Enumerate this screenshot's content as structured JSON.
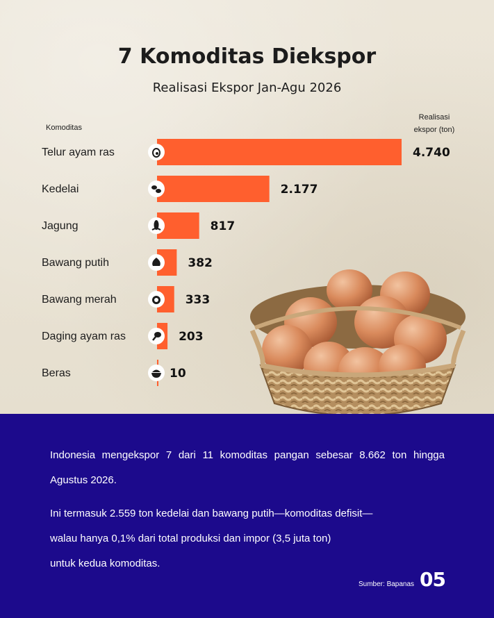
{
  "chart_data": {
    "type": "bar",
    "orientation": "horizontal",
    "title": "7 Komoditas Diekspor",
    "subtitle": "Realisasi Ekspor Jan-Agu 2026",
    "category_header": "Komoditas",
    "value_header_line1": "Realisasi",
    "value_header_line2": "ekspor (ton)",
    "categories": [
      "Telur ayam ras",
      "Kedelai",
      "Jagung",
      "Bawang putih",
      "Bawang merah",
      "Daging ayam ras",
      "Beras"
    ],
    "values": [
      4740,
      2177,
      817,
      382,
      333,
      203,
      10
    ],
    "value_labels": [
      "4.740",
      "2.177",
      "817",
      "382",
      "333",
      "203",
      "10"
    ],
    "icons": [
      "egg-icon",
      "soybean-icon",
      "corn-icon",
      "garlic-icon",
      "shallot-icon",
      "chicken-leg-icon",
      "rice-bowl-icon"
    ],
    "bar_color": "#ff5f2e"
  },
  "text": {
    "paragraph1": "Indonesia mengekspor 7 dari 11 komoditas pangan sebesar 8.662 ton hingga Agustus 2026.",
    "paragraph2_line1": "Ini termasuk 2.559 ton kedelai dan bawang putih—komoditas defisit—",
    "paragraph2_line2": "walau hanya 0,1% dari total produksi dan impor (3,5 juta ton)",
    "paragraph2_line3": "untuk kedua komoditas.",
    "source": "Sumber: Bapanas",
    "page_number": "05"
  },
  "colors": {
    "footer_bg": "#1c0a8c",
    "paper_bg": "#ebe5d8",
    "text_dark": "#1c1c1c"
  }
}
